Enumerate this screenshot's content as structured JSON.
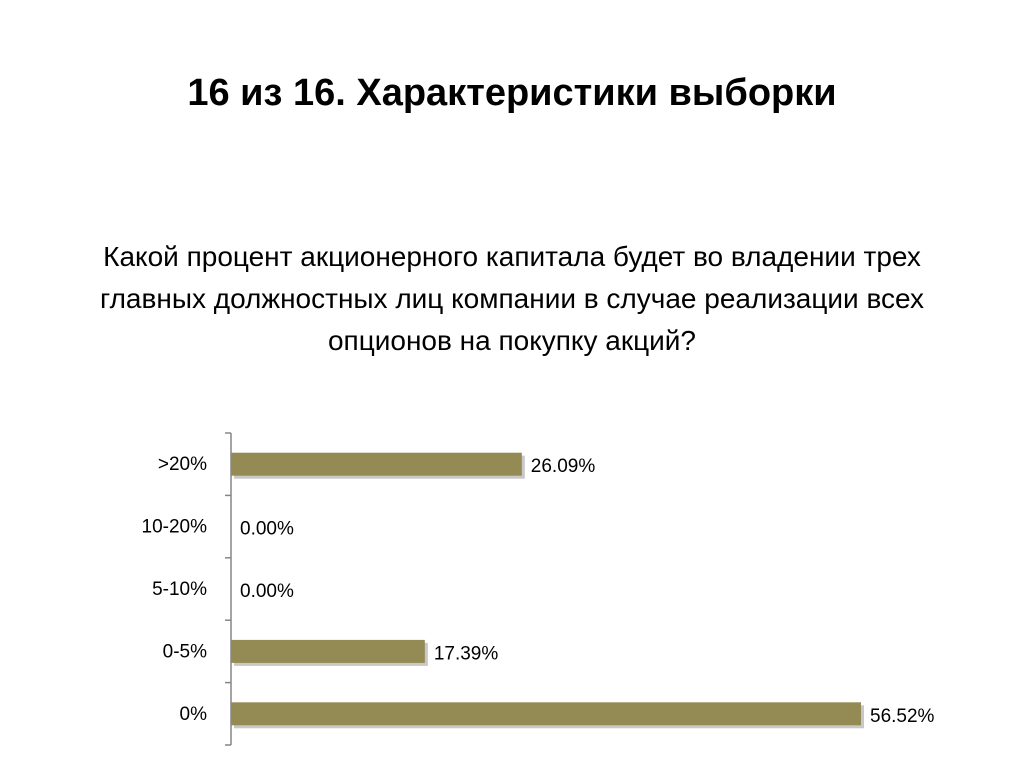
{
  "slide": {
    "title": "16 из 16. Характеристики выборки",
    "question": "Какой процент акционерного капитала будет во владении трех главных должностных лиц компании в случае реализации всех опционов на покупку акций?"
  },
  "colors": {
    "bar": "#948a54",
    "axis": "#868686",
    "shadow": "#c8c8c8"
  },
  "chart_data": {
    "type": "bar",
    "orientation": "horizontal",
    "categories": [
      ">20%",
      "10-20%",
      "5-10%",
      "0-5%",
      "0%"
    ],
    "values": [
      26.09,
      0.0,
      0.0,
      17.39,
      56.52
    ],
    "value_labels": [
      "26.09%",
      "0.00%",
      "0.00%",
      "17.39%",
      "56.52%"
    ],
    "xlim": [
      0,
      56.52
    ],
    "grid": false,
    "legend": "none"
  }
}
